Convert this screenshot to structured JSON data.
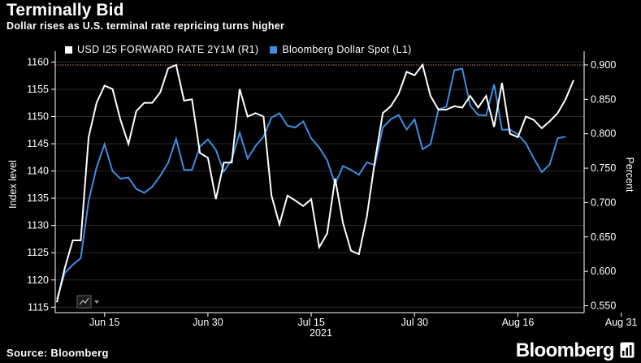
{
  "header": {
    "title": "Terminally Bid",
    "subtitle": "Dollar rises as U.S. terminal rate repricing turns higher"
  },
  "footer": {
    "source": "Source: Bloomberg",
    "brand": "Bloomberg"
  },
  "colors": {
    "background": "#000000",
    "rate_line": "#ffffff",
    "dollar_line": "#3d8ee0",
    "reference_line": "#c9867a"
  },
  "chart_data": {
    "type": "line",
    "title": "Terminally Bid",
    "subtitle": "Dollar rises as U.S. terminal rate repricing turns higher",
    "x_tick_labels": [
      "Jun 15",
      "Jun 30",
      "Jul 15",
      "Jul 30",
      "Aug 16",
      "Aug 31"
    ],
    "x_tick_index": [
      6,
      19,
      32,
      45,
      58,
      71
    ],
    "x_year_label": "2021",
    "left_axis": {
      "label": "Index level",
      "range": [
        1114,
        1162
      ],
      "ticks": [
        1115,
        1120,
        1125,
        1130,
        1135,
        1140,
        1145,
        1150,
        1155,
        1160
      ],
      "tick_labels": [
        "1115",
        "1120",
        "1125",
        "1130",
        "1135",
        "1140",
        "1145",
        "1150",
        "1155",
        "1160"
      ]
    },
    "right_axis": {
      "label": "Percent",
      "range": [
        0.54,
        0.92
      ],
      "ticks": [
        0.55,
        0.6,
        0.65,
        0.7,
        0.75,
        0.8,
        0.85,
        0.9
      ],
      "tick_labels": [
        "0.550",
        "0.600",
        "0.650",
        "0.700",
        "0.750",
        "0.800",
        "0.850",
        "0.900"
      ]
    },
    "reference_line": {
      "axis": "right",
      "value": 0.9
    },
    "series": [
      {
        "name": "USD I25 FORWARD RATE 2Y1M (R1)",
        "legend": "USD I25 FORWARD RATE 2Y1M (R1)",
        "axis": "right",
        "color": "#ffffff",
        "values": [
          0.555,
          0.605,
          0.645,
          0.645,
          0.795,
          0.845,
          0.87,
          0.865,
          0.82,
          0.785,
          0.833,
          0.845,
          0.845,
          0.86,
          0.895,
          0.9,
          0.848,
          0.85,
          0.772,
          0.765,
          0.705,
          0.758,
          0.758,
          0.865,
          0.825,
          0.83,
          0.825,
          0.71,
          0.668,
          0.71,
          0.703,
          0.695,
          0.705,
          0.635,
          0.655,
          0.735,
          0.67,
          0.63,
          0.625,
          0.68,
          0.76,
          0.83,
          0.84,
          0.858,
          0.89,
          0.885,
          0.9,
          0.855,
          0.835,
          0.835,
          0.84,
          0.838,
          0.855,
          0.838,
          0.855,
          0.81,
          0.874,
          0.8,
          0.795,
          0.825,
          0.82,
          0.808,
          0.818,
          0.83,
          0.85,
          0.878
        ]
      },
      {
        "name": "Bloomberg Dollar Spot (L1)",
        "legend": "Bloomberg Dollar Spot (L1)",
        "axis": "left",
        "color": "#3d8ee0",
        "values": [
          1116.5,
          1121.3,
          1122.8,
          1124.0,
          1134.5,
          1140.7,
          1144.9,
          1140.0,
          1138.6,
          1138.8,
          1136.7,
          1136.0,
          1137.1,
          1139.1,
          1141.5,
          1145.9,
          1140.2,
          1140.2,
          1144.5,
          1145.8,
          1143.9,
          1139.9,
          1142.1,
          1147.0,
          1142.3,
          1144.6,
          1146.3,
          1149.8,
          1150.6,
          1148.3,
          1148.0,
          1149.1,
          1146.0,
          1144.3,
          1142.0,
          1137.6,
          1140.9,
          1140.2,
          1139.3,
          1141.6,
          1141.1,
          1148.0,
          1149.5,
          1150.3,
          1147.6,
          1149.5,
          1144.0,
          1144.9,
          1151.3,
          1151.8,
          1158.5,
          1158.8,
          1152.0,
          1150.3,
          1150.2,
          1155.9,
          1147.6,
          1147.6,
          1146.7,
          1145.1,
          1142.3,
          1139.8,
          1141.2,
          1146.0,
          1146.3
        ]
      }
    ]
  }
}
